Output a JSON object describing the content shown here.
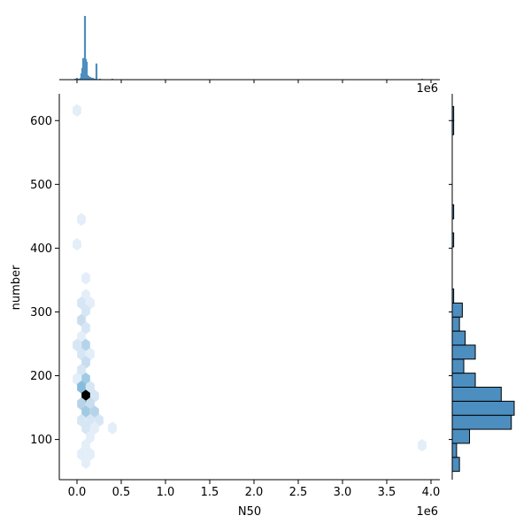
{
  "chart_data": {
    "type": "hexbin-joint",
    "xlabel": "N50",
    "ylabel": "number",
    "x_scale_label": "1e6",
    "marginal_x_scale_label": "1e6",
    "xlim": [
      -0.2,
      4.1
    ],
    "ylim": [
      37,
      642
    ],
    "xticks": [
      0.0,
      0.5,
      1.0,
      1.5,
      2.0,
      2.5,
      3.0,
      3.5,
      4.0
    ],
    "xtick_labels": [
      "0.0",
      "0.5",
      "1.0",
      "1.5",
      "2.0",
      "2.5",
      "3.0",
      "3.5",
      "4.0"
    ],
    "yticks": [
      100,
      200,
      300,
      400,
      500,
      600
    ],
    "ytick_labels": [
      "100",
      "200",
      "300",
      "400",
      "500",
      "600"
    ],
    "colormap": "Blues",
    "accent_color": "#4c8ec0",
    "hexbins": [
      {
        "x": 0.0,
        "y": 616,
        "count": 1
      },
      {
        "x": 0.05,
        "y": 445,
        "count": 1
      },
      {
        "x": 0.0,
        "y": 406,
        "count": 1
      },
      {
        "x": 0.1,
        "y": 353,
        "count": 1
      },
      {
        "x": 0.1,
        "y": 326,
        "count": 1
      },
      {
        "x": 0.05,
        "y": 314,
        "count": 2
      },
      {
        "x": 0.15,
        "y": 314,
        "count": 1
      },
      {
        "x": 0.1,
        "y": 302,
        "count": 2
      },
      {
        "x": 0.05,
        "y": 287,
        "count": 3
      },
      {
        "x": 0.1,
        "y": 275,
        "count": 2
      },
      {
        "x": 0.05,
        "y": 261,
        "count": 1
      },
      {
        "x": 0.0,
        "y": 248,
        "count": 2
      },
      {
        "x": 0.1,
        "y": 248,
        "count": 4
      },
      {
        "x": 0.05,
        "y": 234,
        "count": 2
      },
      {
        "x": 0.15,
        "y": 234,
        "count": 1
      },
      {
        "x": 0.1,
        "y": 221,
        "count": 3
      },
      {
        "x": 0.05,
        "y": 209,
        "count": 2
      },
      {
        "x": 0.1,
        "y": 195,
        "count": 5
      },
      {
        "x": 0.0,
        "y": 195,
        "count": 1
      },
      {
        "x": 0.05,
        "y": 182,
        "count": 6
      },
      {
        "x": 0.15,
        "y": 182,
        "count": 2
      },
      {
        "x": 0.1,
        "y": 168,
        "count": 12
      },
      {
        "x": 0.2,
        "y": 168,
        "count": 2
      },
      {
        "x": 0.05,
        "y": 156,
        "count": 4
      },
      {
        "x": 0.15,
        "y": 156,
        "count": 3
      },
      {
        "x": 0.1,
        "y": 143,
        "count": 5
      },
      {
        "x": 0.2,
        "y": 143,
        "count": 4
      },
      {
        "x": 0.05,
        "y": 130,
        "count": 2
      },
      {
        "x": 0.15,
        "y": 130,
        "count": 2
      },
      {
        "x": 0.25,
        "y": 130,
        "count": 2
      },
      {
        "x": 0.1,
        "y": 118,
        "count": 2
      },
      {
        "x": 0.2,
        "y": 118,
        "count": 1
      },
      {
        "x": 0.4,
        "y": 118,
        "count": 1
      },
      {
        "x": 0.15,
        "y": 104,
        "count": 1
      },
      {
        "x": 0.1,
        "y": 91,
        "count": 1
      },
      {
        "x": 0.05,
        "y": 77,
        "count": 1
      },
      {
        "x": 0.15,
        "y": 77,
        "count": 1
      },
      {
        "x": 0.1,
        "y": 64,
        "count": 1
      },
      {
        "x": 3.9,
        "y": 91,
        "count": 1
      }
    ],
    "marginal_x_bins": [
      {
        "x": -0.02,
        "count": 1
      },
      {
        "x": 0.0,
        "count": 2
      },
      {
        "x": 0.02,
        "count": 1
      },
      {
        "x": 0.04,
        "count": 2
      },
      {
        "x": 0.05,
        "count": 7
      },
      {
        "x": 0.06,
        "count": 13
      },
      {
        "x": 0.07,
        "count": 24
      },
      {
        "x": 0.08,
        "count": 17
      },
      {
        "x": 0.09,
        "count": 71
      },
      {
        "x": 0.1,
        "count": 23
      },
      {
        "x": 0.11,
        "count": 20
      },
      {
        "x": 0.12,
        "count": 5
      },
      {
        "x": 0.13,
        "count": 4
      },
      {
        "x": 0.14,
        "count": 3
      },
      {
        "x": 0.15,
        "count": 3
      },
      {
        "x": 0.16,
        "count": 2
      },
      {
        "x": 0.18,
        "count": 2
      },
      {
        "x": 0.2,
        "count": 1
      },
      {
        "x": 0.22,
        "count": 18
      },
      {
        "x": 0.26,
        "count": 1
      },
      {
        "x": 0.4,
        "count": 1
      },
      {
        "x": 3.9,
        "count": 1
      }
    ],
    "marginal_y_bins": [
      {
        "y_low": 50,
        "y_high": 72,
        "count": 5
      },
      {
        "y_low": 72,
        "y_high": 94,
        "count": 3
      },
      {
        "y_low": 94,
        "y_high": 116,
        "count": 12
      },
      {
        "y_low": 116,
        "y_high": 138,
        "count": 41
      },
      {
        "y_low": 138,
        "y_high": 160,
        "count": 43
      },
      {
        "y_low": 160,
        "y_high": 182,
        "count": 34
      },
      {
        "y_low": 182,
        "y_high": 204,
        "count": 16
      },
      {
        "y_low": 204,
        "y_high": 226,
        "count": 8
      },
      {
        "y_low": 226,
        "y_high": 248,
        "count": 16
      },
      {
        "y_low": 248,
        "y_high": 270,
        "count": 9
      },
      {
        "y_low": 270,
        "y_high": 292,
        "count": 5
      },
      {
        "y_low": 292,
        "y_high": 314,
        "count": 7
      },
      {
        "y_low": 314,
        "y_high": 336,
        "count": 1
      },
      {
        "y_low": 402,
        "y_high": 424,
        "count": 1
      },
      {
        "y_low": 446,
        "y_high": 468,
        "count": 1
      },
      {
        "y_low": 578,
        "y_high": 600,
        "count": 1
      },
      {
        "y_low": 600,
        "y_high": 622,
        "count": 1
      }
    ]
  }
}
